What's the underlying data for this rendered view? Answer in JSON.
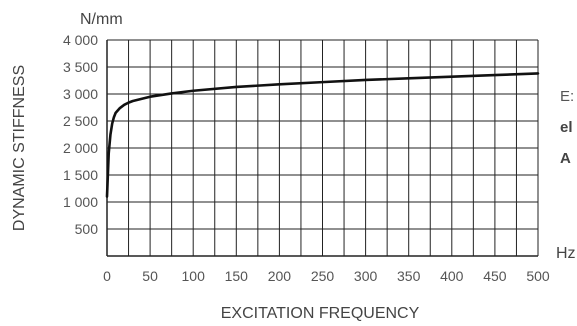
{
  "chart_data": {
    "type": "line",
    "title": "",
    "xlabel": "EXCITATION FREQUENCY",
    "ylabel": "DYNAMIC STIFFNESS",
    "x_unit": "Hz",
    "y_unit": "N/mm",
    "xlim": [
      0,
      500
    ],
    "ylim": [
      0,
      4000
    ],
    "x_ticks": [
      0,
      50,
      100,
      150,
      200,
      250,
      300,
      350,
      400,
      450,
      500
    ],
    "y_ticks": [
      500,
      1000,
      1500,
      2000,
      2500,
      3000,
      3500,
      4000
    ],
    "x_tick_labels": [
      "0",
      "50",
      "100",
      "150",
      "200",
      "250",
      "300",
      "350",
      "400",
      "450",
      "500"
    ],
    "y_tick_labels": [
      "500",
      "1 000",
      "1 500",
      "2 000",
      "2 500",
      "3 000",
      "3 500",
      "4 000"
    ],
    "x_grid_step": 25,
    "y_grid_step": 500,
    "grid": true,
    "series": [
      {
        "x": [
          0,
          1,
          2,
          4,
          6,
          8,
          10,
          15,
          20,
          25,
          30,
          40,
          50,
          75,
          100,
          150,
          200,
          250,
          300,
          350,
          400,
          450,
          500
        ],
        "y": [
          1100,
          1500,
          1900,
          2250,
          2450,
          2570,
          2650,
          2740,
          2800,
          2840,
          2870,
          2910,
          2950,
          3010,
          3060,
          3130,
          3180,
          3220,
          3260,
          3290,
          3320,
          3350,
          3380
        ],
        "color": "#111111"
      }
    ]
  },
  "side_text": {
    "line1": "E:",
    "line2": "el",
    "line3": "A"
  }
}
